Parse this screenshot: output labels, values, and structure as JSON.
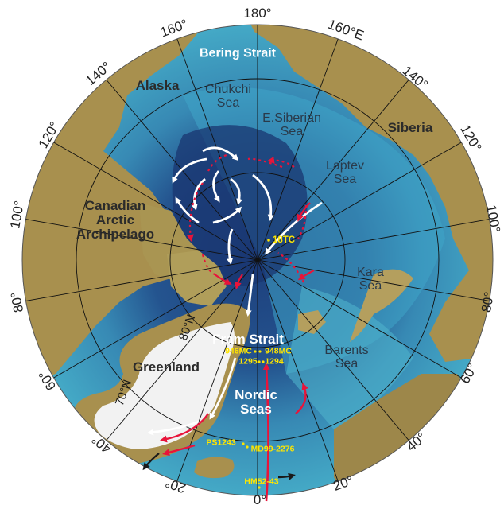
{
  "longitude_labels": [
    "180°",
    "160°",
    "160°E",
    "140°",
    "140°",
    "120°",
    "120°",
    "100°",
    "100°",
    "80°",
    "80°",
    "60°",
    "60°",
    "40°",
    "40°",
    "20°",
    "20°",
    "0°"
  ],
  "latitude_labels": [
    "80°N",
    "70°N"
  ],
  "regions": {
    "alaska": "Alaska",
    "siberia": "Siberia",
    "canadian_arctic": [
      "Canadian",
      "Arctic",
      "Archipelago"
    ],
    "greenland": "Greenland"
  },
  "seas": {
    "bering": "Bering Strait",
    "chukchi": [
      "Chukchi",
      "Sea"
    ],
    "e_siberian": [
      "E.Siberian",
      "Sea"
    ],
    "laptev": [
      "Laptev",
      "Sea"
    ],
    "kara": [
      "Kara",
      "Sea"
    ],
    "barents": [
      "Barents",
      "Sea"
    ],
    "fram": "Fram Strait",
    "nordic": [
      "Nordic",
      "Seas"
    ]
  },
  "sites": {
    "s18tc": "18TC",
    "s946mc": "946MC",
    "s948mc": "948MC",
    "s1295": "1295",
    "s1294": "1294",
    "ps1243": "PS1243",
    "md99": "MD99-2276",
    "hm52": "HM52-43"
  },
  "colors": {
    "ocean_deep": "#1d3f7c",
    "ocean_shelf": "#3fa6c8",
    "land": "#a8904e",
    "ice": "#f2f2f2",
    "arrow_surface": "#ffffff",
    "arrow_atlantic": "#e8143a",
    "site_label": "#ffe600"
  }
}
